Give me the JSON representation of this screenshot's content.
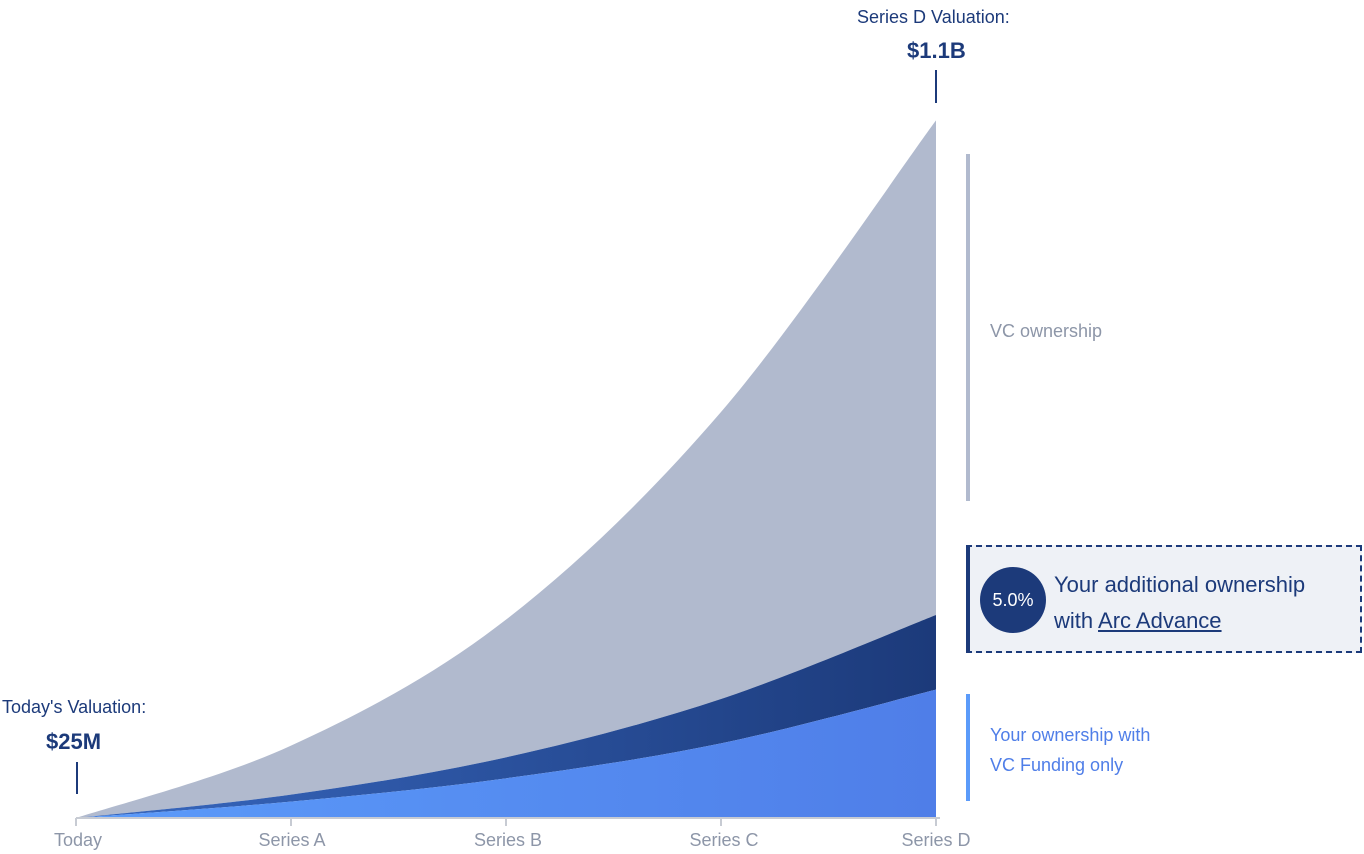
{
  "annotations": {
    "start_label": "Today's Valuation:",
    "start_value": "$25M",
    "end_label": "Series D Valuation:",
    "end_value": "$1.1B"
  },
  "legend": {
    "vc": "VC ownership",
    "arc_badge": "5.0%",
    "arc_text_line1": "Your additional ownership",
    "arc_text_with": "with",
    "arc_link": "Arc Advance",
    "own_line1": "Your ownership with",
    "own_line2": "VC Funding only"
  },
  "colors": {
    "vc": "#b1bace",
    "arc_dark": "#1c3a7a",
    "arc_mid": "#3868c0",
    "own_light": "#5b9bfa",
    "own_dark": "#4f7ee8",
    "axis": "#c7cbd3",
    "tick_text": "#8d96a8"
  },
  "chart_data": {
    "type": "area",
    "stacked": true,
    "categories": [
      "Today",
      "Series A",
      "Series B",
      "Series C",
      "Series D"
    ],
    "series": [
      {
        "name": "Your ownership with VC Funding only",
        "values": [
          0,
          7,
          17,
          32,
          55
        ]
      },
      {
        "name": "Your additional ownership with Arc Advance",
        "values": [
          0,
          3,
          9,
          19,
          32
        ]
      },
      {
        "name": "VC ownership",
        "values": [
          0,
          21,
          59,
          123,
          212
        ]
      }
    ],
    "ylim": [
      0,
      300
    ],
    "grid": false,
    "legend_position": "right"
  }
}
